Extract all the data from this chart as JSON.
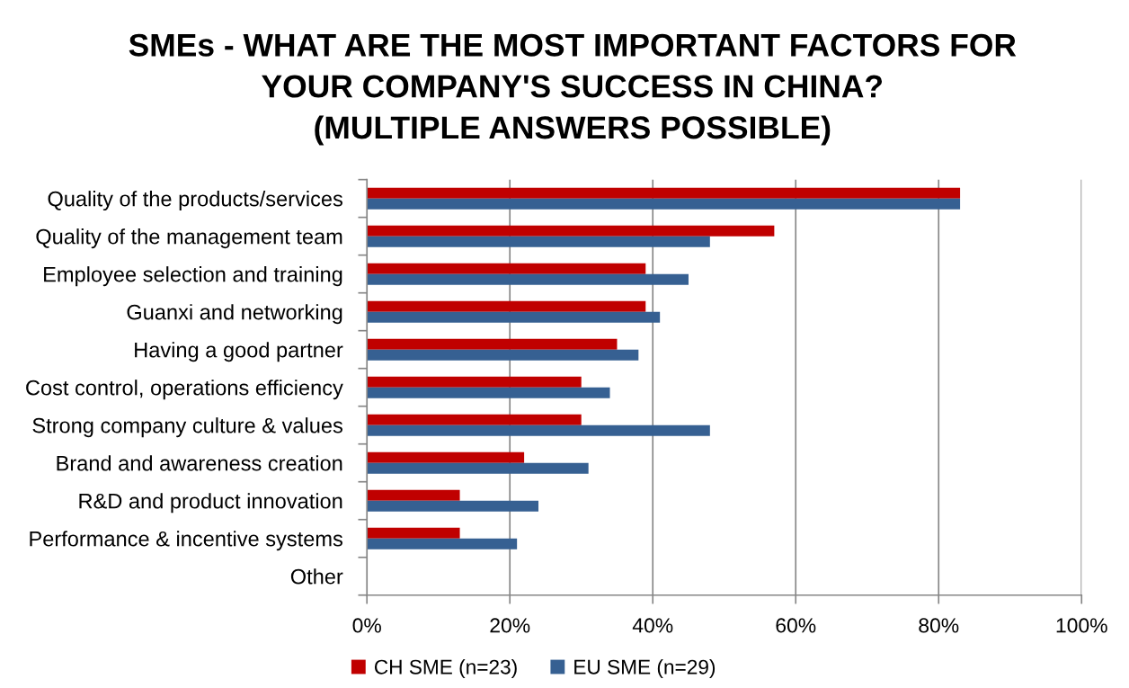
{
  "chart_data": {
    "type": "bar",
    "orientation": "horizontal",
    "title": "SMEs - WHAT ARE THE MOST IMPORTANT FACTORS FOR\nYOUR COMPANY'S SUCCESS IN CHINA?\n(MULTIPLE ANSWERS POSSIBLE)",
    "categories": [
      "Quality of the products/services",
      "Quality of the management team",
      "Employee selection and training",
      "Guanxi and networking",
      "Having a good partner",
      "Cost control, operations efficiency",
      "Strong company culture & values",
      "Brand and awareness creation",
      "R&D and product innovation",
      "Performance & incentive systems",
      "Other"
    ],
    "series": [
      {
        "name": "CH SME (n=23)",
        "color": "#c00000",
        "values": [
          83,
          57,
          39,
          39,
          35,
          30,
          30,
          22,
          13,
          13,
          0
        ]
      },
      {
        "name": "EU SME (n=29)",
        "color": "#366092",
        "values": [
          83,
          48,
          45,
          41,
          38,
          34,
          48,
          31,
          24,
          21,
          0
        ]
      }
    ],
    "xlim": [
      0,
      100
    ],
    "xticks": [
      {
        "value": 0,
        "label": "0%"
      },
      {
        "value": 20,
        "label": "20%"
      },
      {
        "value": 40,
        "label": "40%"
      },
      {
        "value": 60,
        "label": "60%"
      },
      {
        "value": 80,
        "label": "80%"
      },
      {
        "value": 100,
        "label": "100%"
      }
    ],
    "grid": "x",
    "legend": "bottom"
  }
}
